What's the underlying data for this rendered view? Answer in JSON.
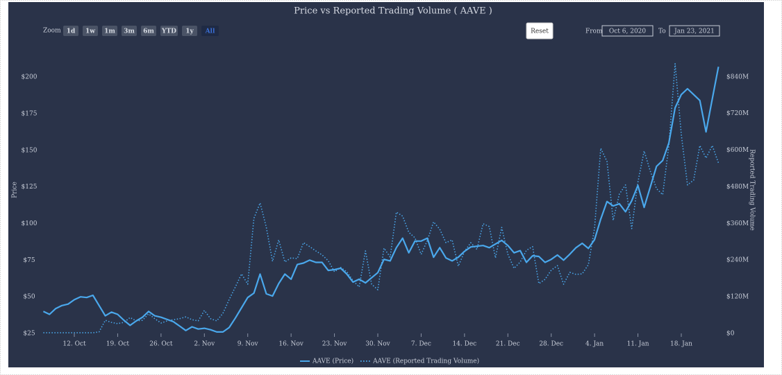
{
  "chart_data": {
    "type": "line",
    "title": "Price vs Reported Trading Volume ( AAVE )",
    "range_selector": {
      "label": "Zoom",
      "buttons": [
        "1d",
        "1w",
        "1m",
        "3m",
        "6m",
        "YTD",
        "1y",
        "All"
      ],
      "selected": 7
    },
    "reset": "Reset",
    "from_label": "From",
    "from": "Oct 6, 2020",
    "to_label": "To",
    "to": "Jan 23, 2021",
    "y_label": "Price",
    "y2_label": "Reported Trading Volume",
    "x": [
      "2020-10-07",
      "2020-10-08",
      "2020-10-09",
      "2020-10-10",
      "2020-10-11",
      "2020-10-12",
      "2020-10-13",
      "2020-10-14",
      "2020-10-15",
      "2020-10-16",
      "2020-10-17",
      "2020-10-18",
      "2020-10-19",
      "2020-10-20",
      "2020-10-21",
      "2020-10-22",
      "2020-10-23",
      "2020-10-24",
      "2020-10-25",
      "2020-10-26",
      "2020-10-27",
      "2020-10-28",
      "2020-10-29",
      "2020-10-30",
      "2020-10-31",
      "2020-11-01",
      "2020-11-02",
      "2020-11-03",
      "2020-11-04",
      "2020-11-05",
      "2020-11-06",
      "2020-11-07",
      "2020-11-08",
      "2020-11-09",
      "2020-11-10",
      "2020-11-11",
      "2020-11-12",
      "2020-11-13",
      "2020-11-14",
      "2020-11-15",
      "2020-11-16",
      "2020-11-17",
      "2020-11-18",
      "2020-11-19",
      "2020-11-20",
      "2020-11-21",
      "2020-11-22",
      "2020-11-23",
      "2020-11-24",
      "2020-11-25",
      "2020-11-26",
      "2020-11-27",
      "2020-11-28",
      "2020-11-29",
      "2020-11-30",
      "2020-12-01",
      "2020-12-02",
      "2020-12-03",
      "2020-12-04",
      "2020-12-05",
      "2020-12-06",
      "2020-12-07",
      "2020-12-08",
      "2020-12-09",
      "2020-12-10",
      "2020-12-11",
      "2020-12-12",
      "2020-12-13",
      "2020-12-14",
      "2020-12-15",
      "2020-12-16",
      "2020-12-17",
      "2020-12-18",
      "2020-12-19",
      "2020-12-20",
      "2020-12-21",
      "2020-12-22",
      "2020-12-23",
      "2020-12-24",
      "2020-12-25",
      "2020-12-26",
      "2020-12-27",
      "2020-12-28",
      "2020-12-29",
      "2020-12-30",
      "2020-12-31",
      "2021-01-01",
      "2021-01-02",
      "2021-01-03",
      "2021-01-04",
      "2021-01-05",
      "2021-01-06",
      "2021-01-07",
      "2021-01-08",
      "2021-01-09",
      "2021-01-10",
      "2021-01-11",
      "2021-01-12",
      "2021-01-13",
      "2021-01-14",
      "2021-01-15",
      "2021-01-16",
      "2021-01-17",
      "2021-01-18",
      "2021-01-19",
      "2021-01-20",
      "2021-01-21",
      "2021-01-22",
      "2021-01-23",
      "2021-01-24"
    ],
    "series": [
      {
        "name": "AAVE (Price)",
        "color": "#4aa8ec",
        "dash": "solid",
        "axis": "y",
        "values": [
          40,
          38,
          42,
          44,
          45,
          48,
          50,
          49.5,
          51,
          44,
          37,
          39.5,
          38,
          34,
          30.5,
          33.5,
          36,
          40,
          37,
          36,
          34.5,
          33,
          30,
          27,
          29.5,
          28,
          28.5,
          27.5,
          26,
          26,
          29,
          35.5,
          42.5,
          49.5,
          52.5,
          65.5,
          52,
          50.5,
          59,
          65.5,
          62,
          72,
          73,
          75,
          73.5,
          73.5,
          68,
          68.5,
          69.5,
          65.5,
          60,
          62,
          59.5,
          63,
          66.5,
          75.5,
          74.5,
          83.5,
          90,
          80,
          88,
          88,
          90,
          77,
          83.5,
          76.5,
          74.5,
          77,
          81,
          84,
          84.5,
          85,
          83.5,
          86,
          88.5,
          85,
          80,
          81.5,
          73.5,
          78,
          77.5,
          73.5,
          75.5,
          78.5,
          75,
          79,
          83.5,
          86.5,
          83,
          89,
          103,
          115,
          112,
          113.5,
          108,
          115.5,
          126,
          111,
          125,
          139,
          143,
          155,
          179,
          188,
          192,
          188,
          184,
          162.5,
          185,
          207
        ]
      },
      {
        "name": "AAVE (Reported Trading Volume)",
        "color": "#4aa8ec",
        "dash": "dotted",
        "axis": "y2",
        "values": [
          2000000.0,
          2000000.0,
          2000000.0,
          2000000.0,
          2000000.0,
          2000000.0,
          2000000.0,
          2000000.0,
          2000000.0,
          5000000.0,
          43000000.0,
          36000000.0,
          32000000.0,
          36000000.0,
          52000000.0,
          41000000.0,
          43000000.0,
          64000000.0,
          48000000.0,
          34000000.0,
          41000000.0,
          45000000.0,
          48000000.0,
          54000000.0,
          45000000.0,
          41000000.0,
          75000000.0,
          48000000.0,
          41000000.0,
          66000000.0,
          111000000.0,
          152000000.0,
          195000000.0,
          161000000.0,
          377000000.0,
          427000000.0,
          347000000.0,
          236000000.0,
          306000000.0,
          234000000.0,
          247000000.0,
          245000000.0,
          297000000.0,
          284000000.0,
          270000000.0,
          257000000.0,
          238000000.0,
          202000000.0,
          216000000.0,
          202000000.0,
          173000000.0,
          152000000.0,
          270000000.0,
          161000000.0,
          143000000.0,
          279000000.0,
          250000000.0,
          397000000.0,
          384000000.0,
          331000000.0,
          313000000.0,
          259000000.0,
          304000000.0,
          365000000.0,
          341000000.0,
          297000000.0,
          306000000.0,
          220000000.0,
          268000000.0,
          297000000.0,
          275000000.0,
          359000000.0,
          350000000.0,
          247000000.0,
          347000000.0,
          259000000.0,
          213000000.0,
          234000000.0,
          272000000.0,
          284000000.0,
          163000000.0,
          177000000.0,
          207000000.0,
          222000000.0,
          161000000.0,
          200000000.0,
          193000000.0,
          195000000.0,
          225000000.0,
          345000000.0,
          606000000.0,
          563000000.0,
          370000000.0,
          456000000.0,
          486000000.0,
          343000000.0,
          495000000.0,
          597000000.0,
          531000000.0,
          474000000.0,
          454000000.0,
          615000000.0,
          883000000.0,
          651000000.0,
          486000000.0,
          502000000.0,
          615000000.0,
          574000000.0,
          615000000.0,
          558000000.0
        ]
      }
    ],
    "xlim": [
      "2020-10-06",
      "2021-01-25"
    ],
    "xticks": [
      {
        "value": "2020-10-12",
        "label": "12. Oct"
      },
      {
        "value": "2020-10-19",
        "label": "19. Oct"
      },
      {
        "value": "2020-10-26",
        "label": "26. Oct"
      },
      {
        "value": "2020-11-02",
        "label": "2. Nov"
      },
      {
        "value": "2020-11-09",
        "label": "9. Nov"
      },
      {
        "value": "2020-11-16",
        "label": "16. Nov"
      },
      {
        "value": "2020-11-23",
        "label": "23. Nov"
      },
      {
        "value": "2020-11-30",
        "label": "30. Nov"
      },
      {
        "value": "2020-12-07",
        "label": "7. Dec"
      },
      {
        "value": "2020-12-14",
        "label": "14. Dec"
      },
      {
        "value": "2020-12-21",
        "label": "21. Dec"
      },
      {
        "value": "2020-12-28",
        "label": "28. Dec"
      },
      {
        "value": "2021-01-04",
        "label": "4. Jan"
      },
      {
        "value": "2021-01-11",
        "label": "11. Jan"
      },
      {
        "value": "2021-01-18",
        "label": "18. Jan"
      }
    ],
    "ylim": [
      25,
      212
    ],
    "yticks": [
      {
        "value": 25,
        "label": "$25"
      },
      {
        "value": 50,
        "label": "$50"
      },
      {
        "value": 75,
        "label": "$75"
      },
      {
        "value": 100,
        "label": "$100"
      },
      {
        "value": 125,
        "label": "$125"
      },
      {
        "value": 150,
        "label": "$150"
      },
      {
        "value": 175,
        "label": "$175"
      },
      {
        "value": 200,
        "label": "$200"
      }
    ],
    "y2lim": [
      0,
      897000000
    ],
    "y2ticks": [
      {
        "value": 0,
        "label": "$0"
      },
      {
        "value": 120000000,
        "label": "$120M"
      },
      {
        "value": 240000000,
        "label": "$240M"
      },
      {
        "value": 360000000,
        "label": "$360M"
      },
      {
        "value": 480000000,
        "label": "$480M"
      },
      {
        "value": 600000000,
        "label": "$600M"
      },
      {
        "value": 720000000,
        "label": "$720M"
      },
      {
        "value": 840000000,
        "label": "$840M"
      }
    ],
    "grid": false
  }
}
